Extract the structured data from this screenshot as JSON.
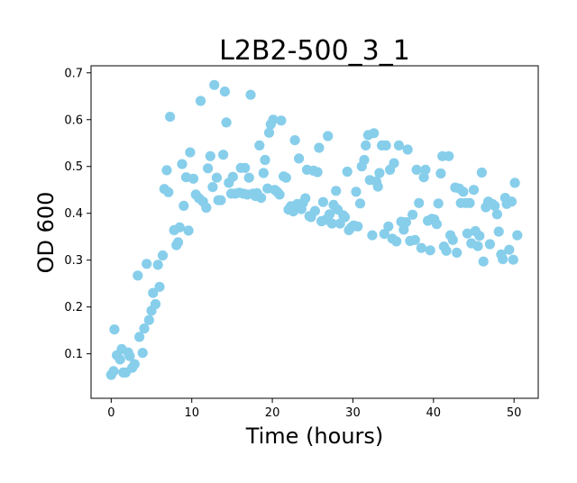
{
  "chart_data": {
    "type": "scatter",
    "title": "L2B2-500_3_1",
    "xlabel": "Time (hours)",
    "ylabel": "OD 600",
    "xlim": [
      -2.5,
      53.0
    ],
    "ylim": [
      0.005,
      0.715
    ],
    "xticks": [
      0,
      10,
      20,
      30,
      40,
      50
    ],
    "yticks": [
      0.1,
      0.2,
      0.3,
      0.4,
      0.5,
      0.6,
      0.7
    ],
    "xtick_labels": [
      "0",
      "10",
      "20",
      "30",
      "40",
      "50"
    ],
    "ytick_labels": [
      "0.1",
      "0.2",
      "0.3",
      "0.4",
      "0.5",
      "0.6",
      "0.7"
    ],
    "grid": false,
    "color": "#87ceeb",
    "points": [
      [
        0.0,
        0.055
      ],
      [
        0.3,
        0.063
      ],
      [
        0.4,
        0.152
      ],
      [
        0.7,
        0.097
      ],
      [
        1.1,
        0.088
      ],
      [
        1.3,
        0.11
      ],
      [
        1.5,
        0.06
      ],
      [
        1.8,
        0.06
      ],
      [
        2.1,
        0.103
      ],
      [
        2.3,
        0.095
      ],
      [
        2.6,
        0.07
      ],
      [
        2.9,
        0.078
      ],
      [
        3.3,
        0.267
      ],
      [
        3.5,
        0.136
      ],
      [
        3.9,
        0.102
      ],
      [
        4.1,
        0.154
      ],
      [
        4.4,
        0.292
      ],
      [
        4.7,
        0.172
      ],
      [
        5.0,
        0.192
      ],
      [
        5.2,
        0.23
      ],
      [
        5.5,
        0.206
      ],
      [
        5.8,
        0.29
      ],
      [
        6.0,
        0.243
      ],
      [
        6.4,
        0.31
      ],
      [
        6.6,
        0.452
      ],
      [
        6.9,
        0.492
      ],
      [
        7.1,
        0.445
      ],
      [
        7.3,
        0.606
      ],
      [
        7.8,
        0.364
      ],
      [
        8.1,
        0.332
      ],
      [
        8.3,
        0.338
      ],
      [
        8.5,
        0.37
      ],
      [
        8.8,
        0.505
      ],
      [
        9.0,
        0.416
      ],
      [
        9.3,
        0.477
      ],
      [
        9.6,
        0.363
      ],
      [
        9.8,
        0.53
      ],
      [
        10.2,
        0.474
      ],
      [
        10.5,
        0.44
      ],
      [
        10.9,
        0.432
      ],
      [
        11.1,
        0.64
      ],
      [
        11.4,
        0.425
      ],
      [
        11.8,
        0.412
      ],
      [
        12.0,
        0.496
      ],
      [
        12.3,
        0.522
      ],
      [
        12.6,
        0.456
      ],
      [
        12.8,
        0.674
      ],
      [
        13.1,
        0.476
      ],
      [
        13.3,
        0.428
      ],
      [
        13.6,
        0.428
      ],
      [
        13.9,
        0.525
      ],
      [
        14.1,
        0.66
      ],
      [
        14.3,
        0.594
      ],
      [
        14.6,
        0.465
      ],
      [
        14.9,
        0.442
      ],
      [
        15.1,
        0.478
      ],
      [
        15.4,
        0.442
      ],
      [
        15.9,
        0.444
      ],
      [
        16.1,
        0.497
      ],
      [
        16.4,
        0.442
      ],
      [
        16.6,
        0.497
      ],
      [
        16.9,
        0.44
      ],
      [
        17.1,
        0.476
      ],
      [
        17.3,
        0.653
      ],
      [
        17.6,
        0.442
      ],
      [
        17.9,
        0.437
      ],
      [
        18.1,
        0.443
      ],
      [
        18.4,
        0.545
      ],
      [
        18.6,
        0.433
      ],
      [
        18.9,
        0.486
      ],
      [
        19.1,
        0.514
      ],
      [
        19.4,
        0.453
      ],
      [
        19.6,
        0.572
      ],
      [
        19.8,
        0.59
      ],
      [
        20.1,
        0.6
      ],
      [
        20.3,
        0.45
      ],
      [
        20.6,
        0.446
      ],
      [
        20.9,
        0.44
      ],
      [
        21.1,
        0.598
      ],
      [
        21.4,
        0.479
      ],
      [
        21.7,
        0.476
      ],
      [
        22.0,
        0.408
      ],
      [
        22.3,
        0.415
      ],
      [
        22.6,
        0.404
      ],
      [
        22.8,
        0.556
      ],
      [
        23.1,
        0.42
      ],
      [
        23.3,
        0.517
      ],
      [
        23.6,
        0.409
      ],
      [
        23.8,
        0.422
      ],
      [
        24.1,
        0.432
      ],
      [
        24.3,
        0.493
      ],
      [
        24.6,
        0.394
      ],
      [
        24.8,
        0.392
      ],
      [
        25.1,
        0.491
      ],
      [
        25.3,
        0.405
      ],
      [
        25.6,
        0.488
      ],
      [
        25.8,
        0.54
      ],
      [
        26.1,
        0.383
      ],
      [
        26.3,
        0.424
      ],
      [
        26.6,
        0.386
      ],
      [
        26.9,
        0.565
      ],
      [
        27.1,
        0.398
      ],
      [
        27.4,
        0.378
      ],
      [
        27.6,
        0.418
      ],
      [
        27.9,
        0.448
      ],
      [
        28.1,
        0.408
      ],
      [
        28.4,
        0.378
      ],
      [
        28.8,
        0.396
      ],
      [
        29.0,
        0.392
      ],
      [
        29.3,
        0.489
      ],
      [
        29.5,
        0.364
      ],
      [
        29.8,
        0.37
      ],
      [
        30.1,
        0.374
      ],
      [
        30.4,
        0.446
      ],
      [
        30.6,
        0.372
      ],
      [
        30.9,
        0.421
      ],
      [
        31.1,
        0.5
      ],
      [
        31.4,
        0.514
      ],
      [
        31.6,
        0.545
      ],
      [
        31.9,
        0.567
      ],
      [
        32.1,
        0.471
      ],
      [
        32.4,
        0.353
      ],
      [
        32.6,
        0.571
      ],
      [
        32.9,
        0.468
      ],
      [
        33.1,
        0.457
      ],
      [
        33.3,
        0.486
      ],
      [
        33.6,
        0.545
      ],
      [
        33.9,
        0.356
      ],
      [
        34.1,
        0.545
      ],
      [
        34.4,
        0.372
      ],
      [
        34.6,
        0.493
      ],
      [
        34.9,
        0.346
      ],
      [
        35.1,
        0.507
      ],
      [
        35.4,
        0.34
      ],
      [
        35.7,
        0.545
      ],
      [
        36.0,
        0.382
      ],
      [
        36.3,
        0.365
      ],
      [
        36.6,
        0.381
      ],
      [
        36.8,
        0.536
      ],
      [
        37.1,
        0.341
      ],
      [
        37.4,
        0.397
      ],
      [
        37.7,
        0.343
      ],
      [
        37.9,
        0.493
      ],
      [
        38.2,
        0.422
      ],
      [
        38.5,
        0.326
      ],
      [
        38.8,
        0.477
      ],
      [
        39.0,
        0.493
      ],
      [
        39.3,
        0.384
      ],
      [
        39.6,
        0.321
      ],
      [
        39.8,
        0.388
      ],
      [
        40.1,
        0.387
      ],
      [
        40.4,
        0.377
      ],
      [
        40.6,
        0.421
      ],
      [
        40.9,
        0.485
      ],
      [
        41.1,
        0.522
      ],
      [
        41.3,
        0.329
      ],
      [
        41.6,
        0.32
      ],
      [
        41.9,
        0.522
      ],
      [
        42.1,
        0.353
      ],
      [
        42.4,
        0.343
      ],
      [
        42.7,
        0.455
      ],
      [
        42.9,
        0.316
      ],
      [
        43.2,
        0.453
      ],
      [
        43.4,
        0.422
      ],
      [
        43.7,
        0.446
      ],
      [
        44.0,
        0.422
      ],
      [
        44.2,
        0.357
      ],
      [
        44.5,
        0.422
      ],
      [
        44.7,
        0.336
      ],
      [
        45.0,
        0.45
      ],
      [
        45.2,
        0.362
      ],
      [
        45.5,
        0.33
      ],
      [
        45.7,
        0.352
      ],
      [
        46.0,
        0.487
      ],
      [
        46.2,
        0.297
      ],
      [
        46.5,
        0.413
      ],
      [
        46.8,
        0.425
      ],
      [
        47.0,
        0.334
      ],
      [
        47.3,
        0.42
      ],
      [
        47.6,
        0.416
      ],
      [
        47.9,
        0.398
      ],
      [
        48.1,
        0.361
      ],
      [
        48.4,
        0.312
      ],
      [
        48.6,
        0.302
      ],
      [
        48.9,
        0.433
      ],
      [
        49.1,
        0.42
      ],
      [
        49.4,
        0.322
      ],
      [
        49.7,
        0.425
      ],
      [
        49.9,
        0.301
      ],
      [
        50.1,
        0.465
      ],
      [
        50.4,
        0.353
      ]
    ]
  }
}
